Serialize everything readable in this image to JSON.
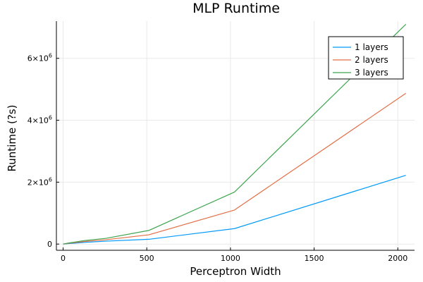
{
  "chart_data": {
    "type": "line",
    "title": "MLP Runtime",
    "xlabel": "Perceptron Width",
    "ylabel": "Runtime (?s)",
    "xlim": [
      -40,
      2100
    ],
    "ylim": [
      -200000,
      7200000
    ],
    "grid": true,
    "legend": "top-right",
    "x_ticks": [
      {
        "value": 0,
        "label": "0"
      },
      {
        "value": 500,
        "label": "500"
      },
      {
        "value": 1000,
        "label": "1000"
      },
      {
        "value": 1500,
        "label": "1500"
      },
      {
        "value": 2000,
        "label": "2000"
      }
    ],
    "y_ticks": [
      {
        "value": 0,
        "label": "0",
        "exp": ""
      },
      {
        "value": 2000000,
        "label": "2×10",
        "exp": "6"
      },
      {
        "value": 4000000,
        "label": "4×10",
        "exp": "6"
      },
      {
        "value": 6000000,
        "label": "6×10",
        "exp": "6"
      }
    ],
    "x": [
      1,
      2,
      4,
      8,
      16,
      32,
      64,
      128,
      256,
      512,
      1024,
      2048
    ],
    "series": [
      {
        "name": "1 layers",
        "color": "#009AFA",
        "values": [
          1000,
          1500,
          2500,
          4000,
          8000,
          15000,
          27000,
          55000,
          95000,
          155000,
          500000,
          2220000
        ]
      },
      {
        "name": "2 layers",
        "color": "#E26F46",
        "values": [
          1500,
          2500,
          4000,
          7000,
          13000,
          25000,
          45000,
          85000,
          140000,
          300000,
          1100000,
          4870000
        ]
      },
      {
        "name": "3 layers",
        "color": "#3EA44E",
        "values": [
          2000,
          3500,
          6000,
          10000,
          18000,
          34000,
          60000,
          115000,
          185000,
          440000,
          1680000,
          7100000
        ]
      }
    ]
  }
}
